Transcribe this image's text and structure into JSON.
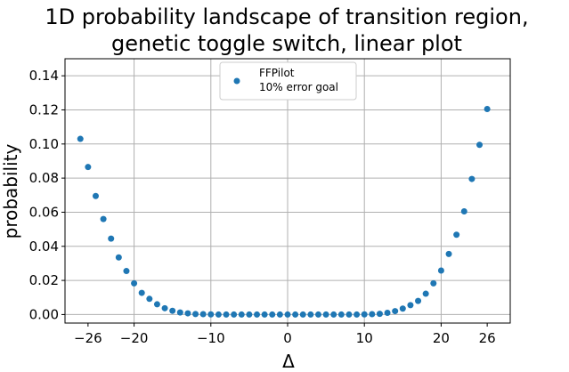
{
  "chart_data": {
    "type": "scatter",
    "title_lines": [
      "1D probability landscape of transition region,",
      "genetic toggle switch, linear plot"
    ],
    "xlabel": "Δ",
    "ylabel": "probability",
    "xlim": [
      -29,
      29
    ],
    "ylim": [
      -0.005,
      0.15
    ],
    "x_ticks": [
      -26,
      -20,
      -10,
      0,
      10,
      20,
      26
    ],
    "x_tick_labels": [
      "−26",
      "−20",
      "−10",
      "0",
      "10",
      "20",
      "26"
    ],
    "x_grid": [
      -20,
      -10,
      0,
      10,
      20
    ],
    "y_ticks": [
      0.0,
      0.02,
      0.04,
      0.06,
      0.08,
      0.1,
      0.12,
      0.14
    ],
    "y_tick_labels": [
      "0.00",
      "0.02",
      "0.04",
      "0.06",
      "0.08",
      "0.10",
      "0.12",
      "0.14"
    ],
    "grid": true,
    "legend_position": "top-center",
    "color": "#1f77b4",
    "series": [
      {
        "name": "FFPilot\n10% error goal",
        "x": [
          -27,
          -26,
          -25,
          -24,
          -23,
          -22,
          -21,
          -20,
          -19,
          -18,
          -17,
          -16,
          -15,
          -14,
          -13,
          -12,
          -11,
          -10,
          -9,
          -8,
          -7,
          -6,
          -5,
          -4,
          -3,
          -2,
          -1,
          0,
          1,
          2,
          3,
          4,
          5,
          6,
          7,
          8,
          9,
          10,
          11,
          12,
          13,
          14,
          15,
          16,
          17,
          18,
          19,
          20,
          21,
          22,
          23,
          24,
          25,
          26
        ],
        "y": [
          0.103,
          0.0865,
          0.0695,
          0.056,
          0.0445,
          0.0335,
          0.0255,
          0.0183,
          0.0127,
          0.0092,
          0.006,
          0.0037,
          0.0022,
          0.0012,
          0.0007,
          0.0003,
          0.0002,
          0.0001,
          0.0,
          0.0,
          0.0,
          0.0,
          0.0,
          0.0,
          0.0,
          0.0,
          0.0,
          0.0,
          0.0,
          0.0,
          0.0,
          0.0,
          0.0,
          0.0,
          0.0,
          0.0,
          0.0,
          0.0001,
          0.0002,
          0.0004,
          0.001,
          0.002,
          0.0035,
          0.0055,
          0.008,
          0.0122,
          0.0183,
          0.0258,
          0.0355,
          0.0468,
          0.0605,
          0.0795,
          0.0995,
          0.1205
        ]
      }
    ]
  }
}
